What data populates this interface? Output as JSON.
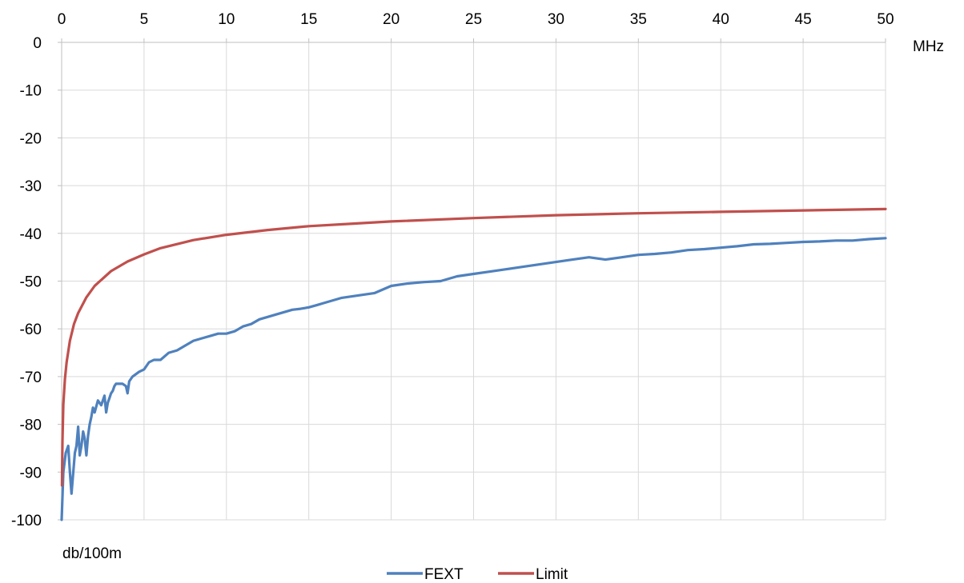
{
  "chart_data": {
    "type": "line",
    "x_unit_label": "MHz",
    "y_unit_label": "db/100m",
    "xlim": [
      0,
      50
    ],
    "ylim": [
      -100,
      0
    ],
    "x_ticks": [
      0,
      5,
      10,
      15,
      20,
      25,
      30,
      35,
      40,
      45,
      50
    ],
    "y_ticks": [
      0,
      -10,
      -20,
      -30,
      -40,
      -50,
      -60,
      -70,
      -80,
      -90,
      -100
    ],
    "x_axis_position": "top",
    "grid": true,
    "legend_position": "bottom",
    "series": [
      {
        "name": "FEXT",
        "color": "#4f81bd",
        "x": [
          0,
          0.1,
          0.25,
          0.4,
          0.5,
          0.6,
          0.8,
          0.9,
          1.0,
          1.1,
          1.2,
          1.3,
          1.4,
          1.5,
          1.6,
          1.7,
          1.8,
          1.9,
          2.0,
          2.2,
          2.4,
          2.6,
          2.7,
          2.8,
          2.9,
          3.0,
          3.1,
          3.2,
          3.3,
          3.5,
          3.7,
          3.9,
          4.0,
          4.1,
          4.3,
          4.5,
          4.7,
          5.0,
          5.3,
          5.6,
          6.0,
          6.5,
          7.0,
          7.5,
          8.0,
          8.5,
          9.0,
          9.5,
          10.0,
          10.5,
          11.0,
          11.5,
          12.0,
          12.5,
          13.0,
          13.5,
          14.0,
          14.5,
          15.0,
          15.5,
          16.0,
          17.0,
          18.0,
          19.0,
          20.0,
          21.0,
          22.0,
          23.0,
          24.0,
          25.0,
          26.0,
          27.0,
          28.0,
          29.0,
          30.0,
          31.0,
          32.0,
          33.0,
          34.0,
          35.0,
          36.0,
          37.0,
          38.0,
          39.0,
          40.0,
          41.0,
          42.0,
          43.0,
          44.0,
          45.0,
          46.0,
          47.0,
          48.0,
          49.0,
          50.0
        ],
        "y": [
          -100,
          -90,
          -86,
          -84.5,
          -90,
          -94.5,
          -86,
          -84.5,
          -80.5,
          -86.5,
          -84.5,
          -81.5,
          -83,
          -86.5,
          -82.5,
          -80,
          -78.5,
          -76.5,
          -77.5,
          -75,
          -76,
          -74,
          -77.5,
          -75.5,
          -74.5,
          -73.5,
          -73,
          -72,
          -71.5,
          -71.5,
          -71.5,
          -72,
          -73.5,
          -71,
          -70,
          -69.5,
          -69,
          -68.5,
          -67,
          -66.5,
          -66.5,
          -65,
          -64.5,
          -63.5,
          -62.5,
          -62,
          -61.5,
          -61,
          -61,
          -60.5,
          -59.5,
          -59,
          -58,
          -57.5,
          -57,
          -56.5,
          -56,
          -55.8,
          -55.5,
          -55,
          -54.5,
          -53.5,
          -53,
          -52.5,
          -51,
          -50.5,
          -50.2,
          -50,
          -49,
          -48.5,
          -48,
          -47.5,
          -47,
          -46.5,
          -46,
          -45.5,
          -45,
          -45.5,
          -45,
          -44.5,
          -44.3,
          -44,
          -43.5,
          -43.3,
          -43,
          -42.7,
          -42.3,
          -42.2,
          -42,
          -41.8,
          -41.7,
          -41.5,
          -41.5,
          -41.2,
          -41
        ]
      },
      {
        "name": "Limit",
        "color": "#c0504d",
        "x": [
          0.02,
          0.05,
          0.1,
          0.2,
          0.3,
          0.5,
          0.75,
          1.0,
          1.5,
          2.0,
          3.0,
          4.0,
          5.0,
          6.0,
          8.0,
          10.0,
          12.5,
          15.0,
          17.5,
          20.0,
          25.0,
          30.0,
          35.0,
          40.0,
          45.0,
          50.0
        ],
        "y": [
          -92.8,
          -83.5,
          -75.8,
          -70.5,
          -67,
          -62.5,
          -59,
          -56.7,
          -53.4,
          -51,
          -47.9,
          -45.9,
          -44.4,
          -43.1,
          -41.4,
          -40.3,
          -39.3,
          -38.5,
          -38,
          -37.5,
          -36.8,
          -36.2,
          -35.8,
          -35.5,
          -35.2,
          -34.9
        ]
      }
    ]
  }
}
